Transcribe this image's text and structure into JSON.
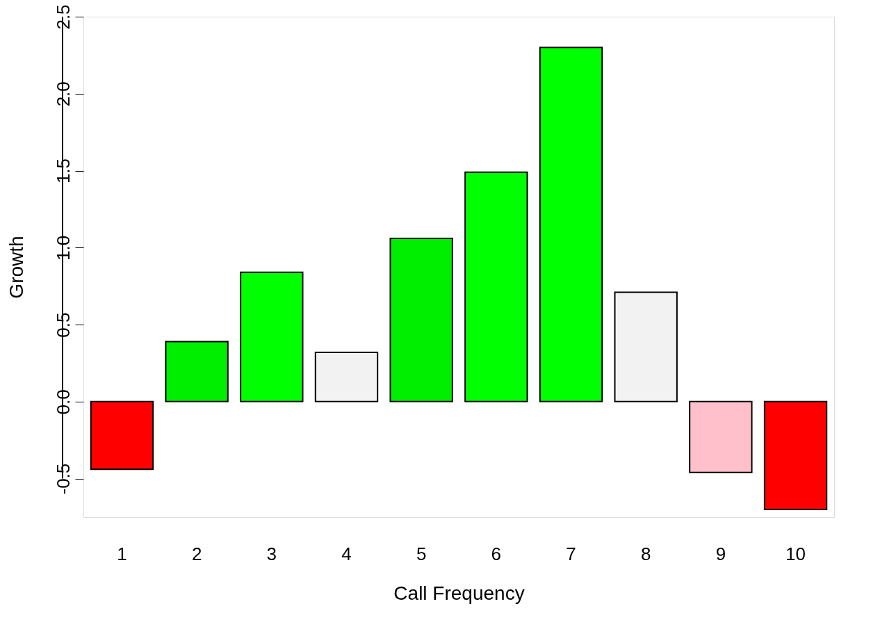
{
  "chart_data": {
    "type": "bar",
    "xlabel": "Call Frequency",
    "ylabel": "Growth",
    "categories": [
      "1",
      "2",
      "3",
      "4",
      "5",
      "6",
      "7",
      "8",
      "9",
      "10"
    ],
    "values": [
      -0.44,
      0.39,
      0.84,
      0.32,
      1.06,
      1.49,
      2.3,
      0.71,
      -0.46,
      -0.7
    ],
    "colors": [
      "#ff0000",
      "#00ee00",
      "#00ff00",
      "#f2f2f2",
      "#00ee00",
      "#00ff00",
      "#00ff00",
      "#f2f2f2",
      "#ffc0cb",
      "#ff0000"
    ],
    "ylim": [
      -0.75,
      2.5
    ],
    "yticks": [
      -0.5,
      {
        "value": 0,
        "label": "0.0"
      },
      0.5,
      {
        "value": 1,
        "label": "1.0"
      },
      1.5,
      {
        "value": 2,
        "label": "2.0"
      },
      2.5
    ],
    "grid": false
  }
}
